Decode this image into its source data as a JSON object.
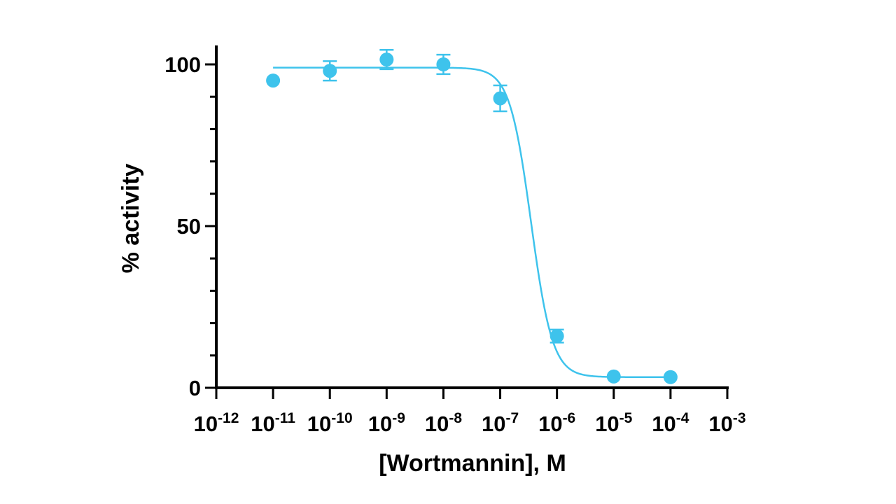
{
  "colors": {
    "series": "#3EC3EC",
    "axis": "#000000"
  },
  "chart_data": {
    "type": "scatter",
    "xlabel": "[Wortmannin], M",
    "ylabel": "% activity",
    "x_scale": "log10",
    "xlim": [
      1e-12,
      0.001
    ],
    "ylim": [
      0,
      105
    ],
    "x_ticks": [
      {
        "value": 1e-12,
        "base": "10",
        "exp": "-12"
      },
      {
        "value": 1e-11,
        "base": "10",
        "exp": "-11"
      },
      {
        "value": 1e-10,
        "base": "10",
        "exp": "-10"
      },
      {
        "value": 1e-09,
        "base": "10",
        "exp": "-9"
      },
      {
        "value": 1e-08,
        "base": "10",
        "exp": "-8"
      },
      {
        "value": 1e-07,
        "base": "10",
        "exp": "-7"
      },
      {
        "value": 1e-06,
        "base": "10",
        "exp": "-6"
      },
      {
        "value": 1e-05,
        "base": "10",
        "exp": "-5"
      },
      {
        "value": 0.0001,
        "base": "10",
        "exp": "-4"
      },
      {
        "value": 0.001,
        "base": "10",
        "exp": "-3"
      }
    ],
    "y_ticks": [
      {
        "value": 0,
        "label": "0"
      },
      {
        "value": 50,
        "label": "50"
      },
      {
        "value": 100,
        "label": "100"
      }
    ],
    "y_minor_step": 10,
    "grid": false,
    "series": [
      {
        "x": [
          1e-11,
          1e-10,
          1e-09,
          1e-08,
          1e-07,
          1e-06,
          1e-05,
          0.0001
        ],
        "y": [
          95,
          98,
          101.5,
          100,
          89.5,
          16,
          3.5,
          3.3
        ],
        "error": [
          0,
          3,
          3,
          3,
          4,
          2,
          0,
          0
        ]
      }
    ],
    "fit": {
      "type": "sigmoidal dose-response",
      "top": 99,
      "bottom": 3.3,
      "ic50": 3.5e-07,
      "hill_slope": -2.3,
      "x_range": [
        1e-11,
        0.0001
      ]
    }
  }
}
